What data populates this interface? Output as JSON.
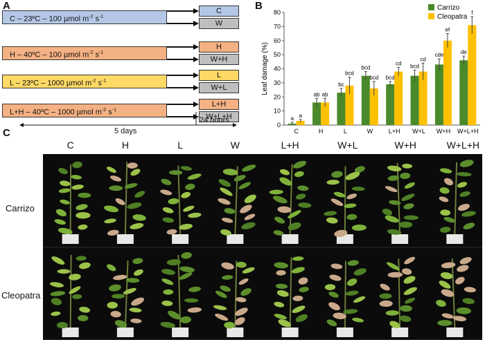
{
  "panel_a": {
    "label": "A",
    "conditions": [
      {
        "text": "C – 23ºC – 100 µmol m-2 s-1",
        "color": "#b4c7e7",
        "outcomes": [
          {
            "text": "C",
            "color": "#b4c7e7"
          },
          {
            "text": "W",
            "color": "#bfbfbf"
          }
        ]
      },
      {
        "text": "H – 40ºC – 100 µmol m-2 s-1",
        "color": "#f4b183",
        "outcomes": [
          {
            "text": "H",
            "color": "#f4b183"
          },
          {
            "text": "W+H",
            "color": "#bfbfbf"
          }
        ]
      },
      {
        "text": "L – 23ºC – 1000 µmol m-2 s-1",
        "color": "#ffd966",
        "outcomes": [
          {
            "text": "L",
            "color": "#ffd966"
          },
          {
            "text": "W+L",
            "color": "#bfbfbf"
          }
        ]
      },
      {
        "text": "L+H – 40ºC – 1000 µmol m-2 s-1",
        "color": "#f4b183",
        "outcomes": [
          {
            "text": "L+H",
            "color": "#f4b183"
          },
          {
            "text": "W+L+H",
            "color": "#bfbfbf"
          }
        ]
      }
    ],
    "duration_days": "5 days",
    "duration_hours": "24 hours"
  },
  "panel_b": {
    "label": "B"
  },
  "panel_c": {
    "label": "C",
    "columns": [
      "C",
      "H",
      "L",
      "W",
      "L+H",
      "W+L",
      "W+H",
      "W+L+H"
    ],
    "rows": [
      "Carrizo",
      "Cleopatra"
    ]
  },
  "chart_data": {
    "type": "bar",
    "ylabel": "Leaf damage (%)",
    "ylim": [
      0,
      80
    ],
    "yticks": [
      "0",
      "10",
      "20",
      "30",
      "40",
      "50",
      "60",
      "70",
      "80"
    ],
    "categories": [
      "C",
      "H",
      "L",
      "W",
      "L+H",
      "W+L",
      "W+H",
      "W+L+H"
    ],
    "series": [
      {
        "name": "Carrizo",
        "color": "#4a8a2a",
        "values": [
          1,
          16,
          23,
          35,
          29,
          35,
          43,
          46
        ],
        "errors": [
          1,
          3,
          3,
          3,
          2,
          4,
          4,
          3
        ],
        "letters": [
          "a",
          "ab",
          "bc",
          "bcd",
          "bcd",
          "bcd",
          "cde",
          "de"
        ]
      },
      {
        "name": "Cleopatra",
        "color": "#ffc000",
        "values": [
          3,
          16,
          28,
          26,
          38,
          38,
          60,
          71
        ],
        "errors": [
          1,
          3,
          6,
          5,
          3,
          6,
          5,
          6
        ],
        "letters": [
          "a",
          "ab",
          "bcd",
          "bcd",
          "cd",
          "cd",
          "ef",
          "f"
        ]
      }
    ],
    "legend_position": "top-right"
  }
}
